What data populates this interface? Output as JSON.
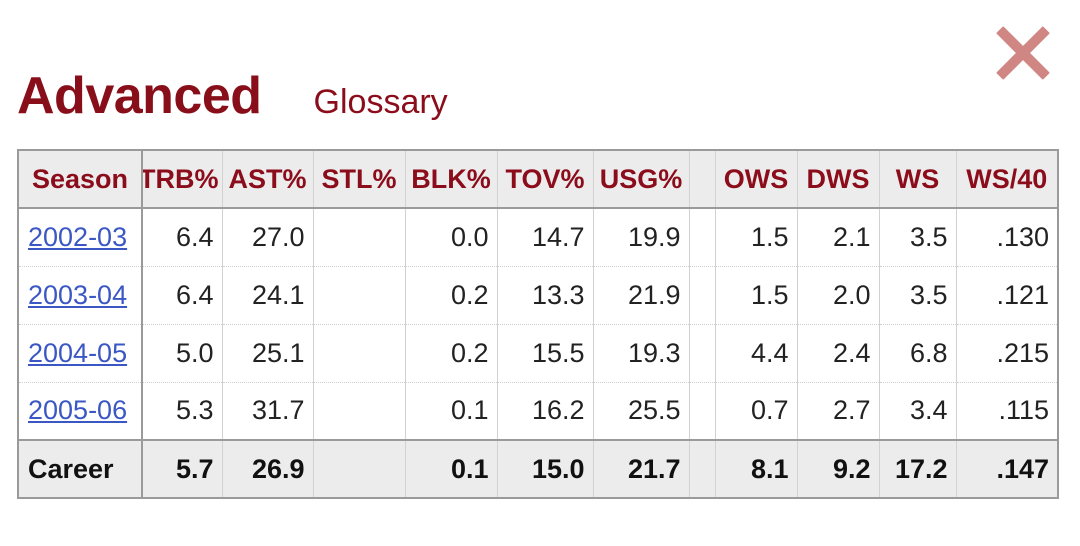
{
  "header": {
    "title": "Advanced",
    "glossary_label": "Glossary"
  },
  "close_icon": "close-x-icon",
  "colors": {
    "title": "#880e1a",
    "header_text": "#8b0c1a",
    "link": "#3b57c4",
    "close": "#d08783",
    "header_bg": "#ececec"
  },
  "table": {
    "columns": [
      "Season",
      "TRB%",
      "AST%",
      "STL%",
      "BLK%",
      "TOV%",
      "USG%",
      "",
      "OWS",
      "DWS",
      "WS",
      "WS/40"
    ],
    "rows": [
      [
        "2002-03",
        "6.4",
        "27.0",
        "",
        "0.0",
        "14.7",
        "19.9",
        "",
        "1.5",
        "2.1",
        "3.5",
        ".130"
      ],
      [
        "2003-04",
        "6.4",
        "24.1",
        "",
        "0.2",
        "13.3",
        "21.9",
        "",
        "1.5",
        "2.0",
        "3.5",
        ".121"
      ],
      [
        "2004-05",
        "5.0",
        "25.1",
        "",
        "0.2",
        "15.5",
        "19.3",
        "",
        "4.4",
        "2.4",
        "6.8",
        ".215"
      ],
      [
        "2005-06",
        "5.3",
        "31.7",
        "",
        "0.1",
        "16.2",
        "25.5",
        "",
        "0.7",
        "2.7",
        "3.4",
        ".115"
      ]
    ],
    "footer": [
      "Career",
      "5.7",
      "26.9",
      "",
      "0.1",
      "15.0",
      "21.7",
      "",
      "8.1",
      "9.2",
      "17.2",
      ".147"
    ]
  }
}
